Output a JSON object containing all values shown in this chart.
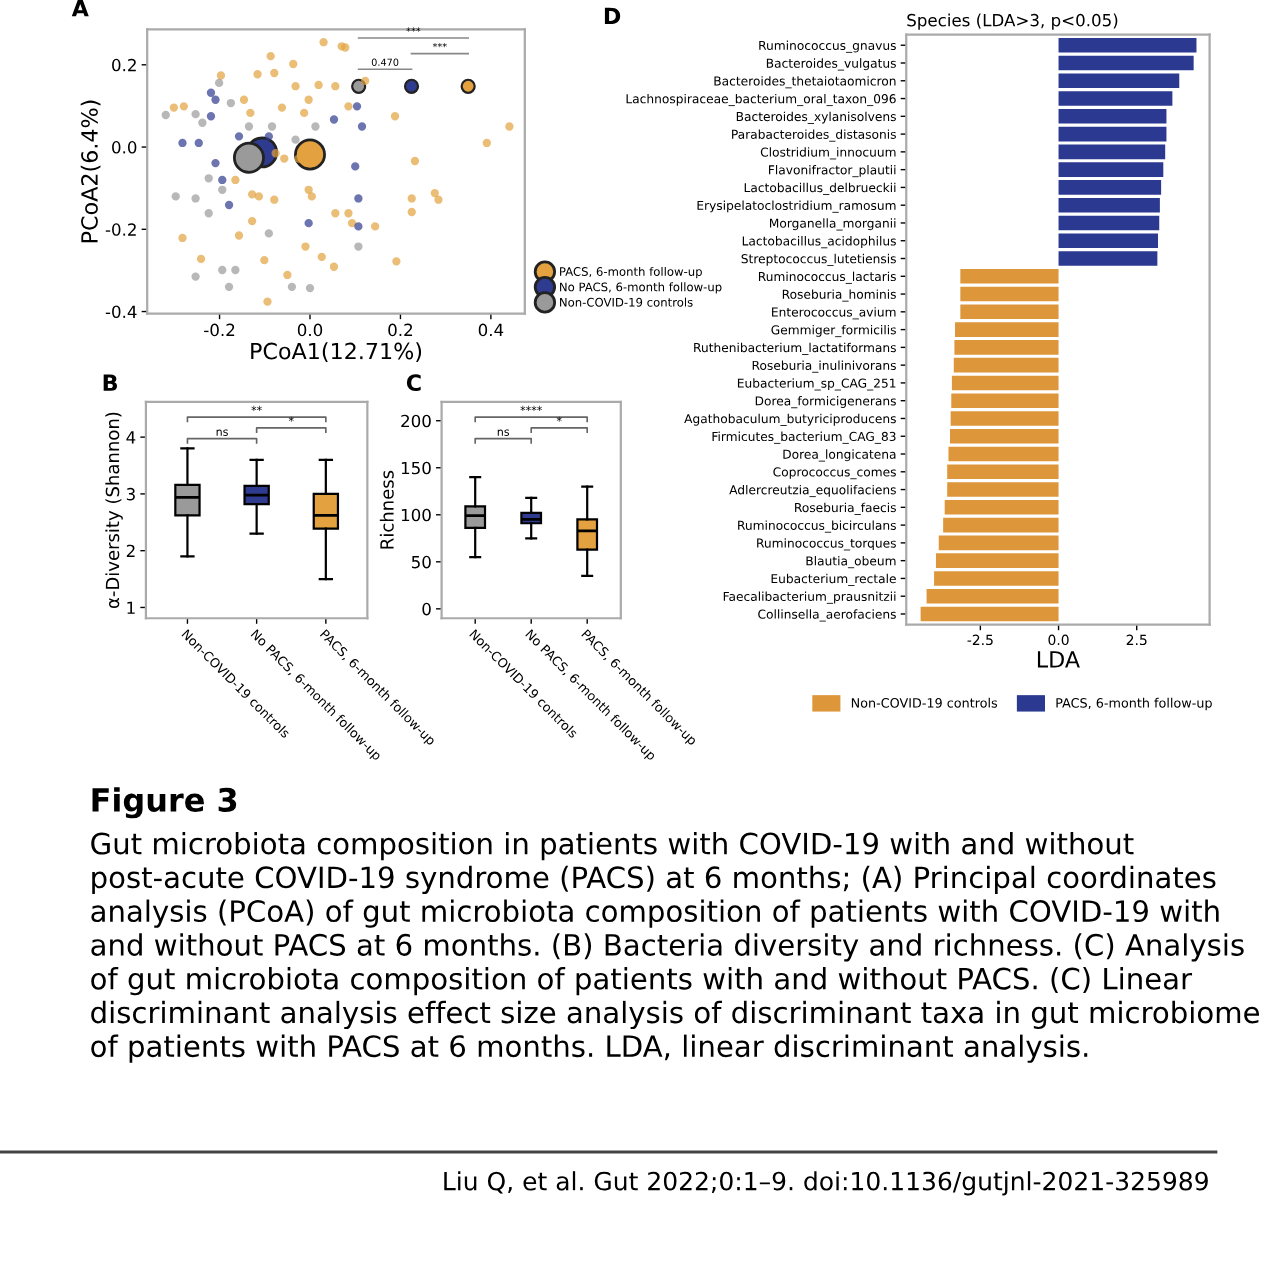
{
  "chart_data": [
    {
      "type": "scatter",
      "title": "A",
      "xlabel": "PCoA1(12.71%)",
      "ylabel": "PCoA2(6.4%)",
      "xlim": [
        -0.36,
        0.475
      ],
      "ylim": [
        -0.405,
        0.286
      ],
      "xticks": [
        {
          "value": -0.2,
          "label": "-0.2"
        },
        {
          "value": 0.0,
          "label": "0.0"
        },
        {
          "value": 0.2,
          "label": "0.2"
        },
        {
          "value": 0.4,
          "label": "0.4"
        }
      ],
      "yticks": [
        {
          "value": -0.4,
          "label": "-0.4"
        },
        {
          "value": -0.2,
          "label": "-0.2"
        },
        {
          "value": 0.0,
          "label": "0.0"
        },
        {
          "value": 0.2,
          "label": "0.2"
        }
      ],
      "grid": false,
      "legend": "right",
      "marker": "circle",
      "annotations": [
        "***",
        "***",
        "0.470"
      ],
      "series": [
        {
          "name": "PACS, 6-month follow-up",
          "color": "#e3a23f",
          "x": [
            0.03,
            0.07,
            0.078,
            -0.087,
            -0.037,
            -0.197,
            -0.116,
            -0.079,
            -0.032,
            0.019,
            0.056,
            0.122,
            -0.301,
            -0.279,
            -0.146,
            -0.132,
            -0.062,
            -0.013,
            -0.003,
            0.085,
            0.188,
            0.441,
            0.391,
            -0.057,
            -0.025,
            0.232,
            -0.165,
            -0.128,
            -0.113,
            -0.003,
            0.004,
            -0.079,
            0.056,
            0.085,
            0.225,
            0.225,
            0.284,
            0.276,
            -0.282,
            -0.157,
            -0.241,
            -0.101,
            -0.05,
            0.026,
            0.191,
            -0.094,
            0.053,
            0.144,
            0.093,
            -0.128,
            -0.01,
            -0.076
          ],
          "values": [
            0.255,
            0.245,
            0.242,
            0.221,
            0.202,
            0.174,
            0.177,
            0.18,
            0.148,
            0.151,
            0.148,
            0.161,
            0.096,
            0.099,
            0.115,
            0.083,
            0.096,
            0.083,
            0.115,
            0.099,
            0.075,
            0.05,
            0.01,
            -0.028,
            -0.028,
            -0.034,
            -0.08,
            -0.115,
            -0.12,
            -0.104,
            -0.12,
            -0.128,
            -0.161,
            -0.161,
            -0.125,
            -0.158,
            -0.128,
            -0.112,
            -0.221,
            -0.215,
            -0.272,
            -0.275,
            -0.311,
            -0.267,
            -0.278,
            -0.376,
            -0.291,
            -0.193,
            -0.185,
            -0.18,
            -0.242,
            -0.015
          ]
        },
        {
          "name": "No PACS, 6-month follow-up",
          "color": "#2e3b8f",
          "x": [
            -0.219,
            -0.209,
            -0.282,
            -0.246,
            -0.219,
            0.104,
            0.115,
            0.053,
            -0.157,
            -0.194,
            -0.209,
            -0.179,
            0.107,
            0.107,
            -0.003,
            -0.091,
            0.1
          ],
          "values": [
            0.132,
            0.115,
            0.01,
            0.01,
            0.075,
            0.099,
            0.05,
            0.067,
            0.026,
            -0.08,
            -0.039,
            -0.141,
            -0.125,
            -0.193,
            -0.185,
            0.026,
            -0.047
          ]
        },
        {
          "name": "Non-COVID-19 controls",
          "color": "#9a9a9a",
          "x": [
            -0.319,
            -0.253,
            -0.238,
            -0.175,
            -0.201,
            -0.135,
            -0.084,
            -0.253,
            -0.224,
            -0.224,
            -0.194,
            -0.091,
            -0.194,
            -0.165,
            -0.253,
            -0.179,
            0.0,
            -0.04,
            0.107,
            -0.297,
            -0.032,
            0.012
          ],
          "values": [
            0.078,
            0.08,
            0.059,
            0.107,
            0.156,
            0.05,
            0.05,
            -0.125,
            -0.161,
            -0.076,
            -0.104,
            -0.21,
            -0.299,
            -0.299,
            -0.315,
            -0.34,
            -0.343,
            -0.34,
            -0.242,
            -0.12,
            0.018,
            0.05
          ]
        },
        {
          "type": "bubble",
          "x": [
            0.0,
            -0.106,
            -0.135
          ],
          "values": [
            -0.018,
            -0.013,
            -0.026
          ],
          "sizes": [
            1,
            1,
            1
          ],
          "colors": [
            "#e3a23f",
            "#2e3b8f",
            "#9a9a9a"
          ]
        }
      ]
    },
    {
      "type": "box",
      "title": "B",
      "ylabel": "α-Diversity (Shannon)",
      "categories": [
        "Non-COVID-19 controls",
        "No PACS, 6-month follow-up",
        "PACS, 6-month follow-up"
      ],
      "ylim": [
        0.81,
        4.62
      ],
      "yticks": [
        1,
        2,
        3,
        4
      ],
      "grid": false,
      "colors": [
        "#9a9a9a",
        "#2e3b8f",
        "#e3a23f"
      ],
      "annotations": [
        "**",
        "ns",
        "*"
      ],
      "boxes": [
        {
          "low": 1.9,
          "q1": 2.62,
          "median": 2.94,
          "q3": 3.16,
          "high": 3.8
        },
        {
          "low": 2.3,
          "q1": 2.82,
          "median": 2.98,
          "q3": 3.14,
          "high": 3.6
        },
        {
          "low": 1.5,
          "q1": 2.39,
          "median": 2.62,
          "q3": 3.0,
          "high": 3.6
        }
      ]
    },
    {
      "type": "box",
      "title": "C",
      "ylabel": "Richness",
      "categories": [
        "Non-COVID-19 controls",
        "No PACS, 6-month follow-up",
        "PACS, 6-month follow-up"
      ],
      "ylim": [
        -10,
        220
      ],
      "yticks": [
        0,
        50,
        100,
        150,
        200
      ],
      "grid": false,
      "colors": [
        "#9a9a9a",
        "#2e3b8f",
        "#e3a23f"
      ],
      "annotations": [
        "****",
        "ns",
        "*"
      ],
      "boxes": [
        {
          "low": 55,
          "q1": 86,
          "median": 99,
          "q3": 109,
          "high": 140
        },
        {
          "low": 75,
          "q1": 91,
          "median": 95,
          "q3": 102,
          "high": 118
        },
        {
          "low": 35,
          "q1": 63,
          "median": 83,
          "q3": 95,
          "high": 130
        }
      ]
    },
    {
      "type": "bar",
      "orientation": "horizontal",
      "title": "D",
      "subtitle": "Species (LDA>3, p<0.05)",
      "xlabel": "LDA",
      "categories": [
        "Ruminococcus_gnavus",
        "Bacteroides_vulgatus",
        "Bacteroides_thetaiotaomicron",
        "Lachnospiraceae_bacterium_oral_taxon_096",
        "Bacteroides_xylanisolvens",
        "Parabacteroides_distasonis",
        "Clostridium_innocuum",
        "Flavonifractor_plautii",
        "Lactobacillus_delbrueckii",
        "Erysipelatoclostridium_ramosum",
        "Morganella_morganii",
        "Lactobacillus_acidophilus",
        "Streptococcus_lutetiensis",
        "Ruminococcus_lactaris",
        "Roseburia_hominis",
        "Enterococcus_avium",
        "Gemmiger_formicilis",
        "Ruthenibacterium_lactatiformans",
        "Roseburia_inulinivorans",
        "Eubacterium_sp_CAG_251",
        "Dorea_formicigenerans",
        "Agathobaculum_butyriciproducens",
        "Firmicutes_bacterium_CAG_83",
        "Dorea_longicatena",
        "Coprococcus_comes",
        "Adlercreutzia_equolifaciens",
        "Roseburia_faecis",
        "Ruminococcus_bicirculans",
        "Ruminococcus_torques",
        "Blautia_obeum",
        "Eubacterium_rectale",
        "Faecalibacterium_prausnitzii",
        "Collinsella_aerofaciens"
      ],
      "xlim": [
        -4.87,
        4.83
      ],
      "xticks": [
        {
          "value": -2.5,
          "label": "-2.5"
        },
        {
          "value": 0.0,
          "label": "0.0"
        },
        {
          "value": 2.5,
          "label": "2.5"
        }
      ],
      "grid": false,
      "legend": "bottom",
      "series": [
        {
          "name": "Non-COVID-19 controls",
          "color": "#dd963a",
          "values": [
            null,
            null,
            null,
            null,
            null,
            null,
            null,
            null,
            null,
            null,
            null,
            null,
            null,
            -3.14,
            -3.14,
            -3.14,
            -3.31,
            -3.33,
            -3.35,
            -3.41,
            -3.43,
            -3.45,
            -3.47,
            -3.52,
            -3.56,
            -3.56,
            -3.64,
            -3.69,
            -3.83,
            -3.92,
            -3.98,
            -4.22,
            -4.41
          ]
        },
        {
          "name": "PACS, 6-month follow-up",
          "color": "#2b3990",
          "values": [
            4.41,
            4.32,
            3.86,
            3.64,
            3.45,
            3.45,
            3.41,
            3.35,
            3.28,
            3.24,
            3.22,
            3.18,
            3.16,
            null,
            null,
            null,
            null,
            null,
            null,
            null,
            null,
            null,
            null,
            null,
            null,
            null,
            null,
            null,
            null,
            null,
            null,
            null,
            null
          ]
        }
      ]
    },
    {
      "type": "other",
      "title": "Figure 3",
      "annotations": [
        "Gut microbiota composition in patients with COVID-19 with and without post-acute COVID-19 syndrome (PACS) at 6 months; (A) Principal coordinates analysis (PCoA) of gut microbiota composition of patients with COVID-19 with and without PACS at 6 months. (B) Bacteria diversity and richness. (C) Analysis of gut microbiota composition of patients with and without PACS. (C) Linear discriminant analysis effect size analysis of discriminant taxa in gut microbiome of patients with PACS at 6 months. LDA, linear discriminant analysis.",
        "Liu Q, et al. Gut 2022;0:1–9. doi:10.1136/gutjnl-2021-325989"
      ]
    }
  ]
}
